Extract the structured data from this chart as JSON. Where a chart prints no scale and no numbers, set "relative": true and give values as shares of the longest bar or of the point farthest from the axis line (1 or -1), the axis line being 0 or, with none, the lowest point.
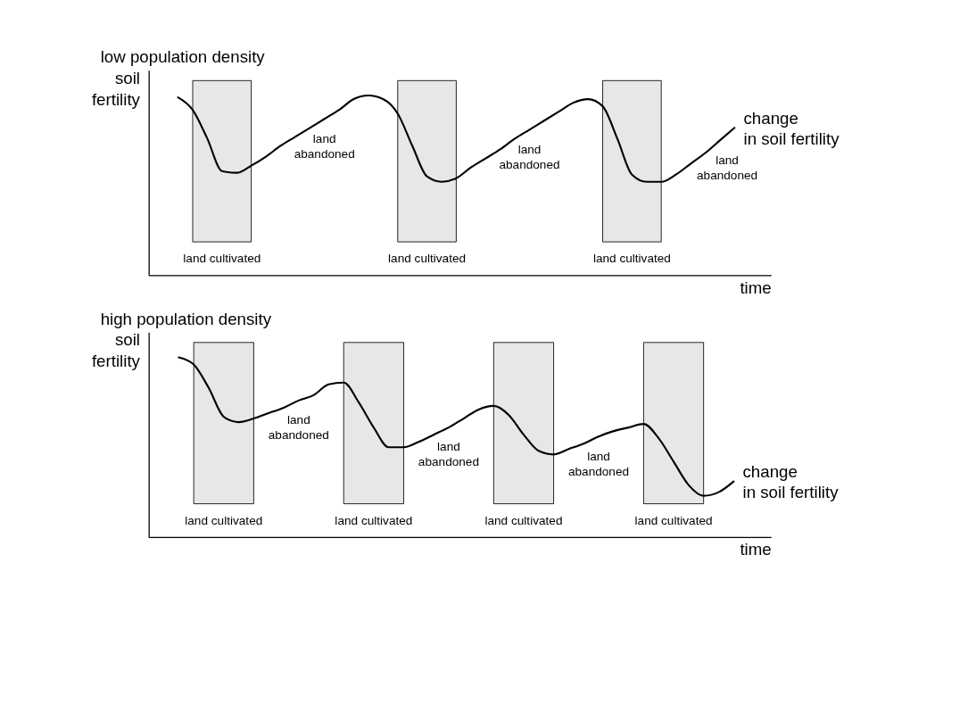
{
  "chart_data": [
    {
      "type": "line",
      "title": "low population density",
      "ylabel": "soil fertility",
      "xlabel": "time",
      "relative": true,
      "grid": false,
      "tick_labels": false,
      "categories": [
        null,
        null,
        null,
        null,
        null,
        null,
        null,
        null,
        null,
        null,
        null,
        null,
        null,
        null,
        null,
        null,
        null,
        null,
        null,
        null,
        null,
        null,
        null,
        null,
        null,
        null,
        null,
        null,
        null,
        null,
        null,
        null,
        null,
        null,
        null,
        null,
        null,
        null,
        null
      ],
      "series": [
        {
          "name": "change in soil fertility",
          "color": "#000000",
          "values": [
            0.99,
            0.92,
            0.76,
            0.58,
            0.57,
            0.61,
            0.66,
            0.72,
            0.77,
            0.82,
            0.87,
            0.92,
            0.98,
            1,
            0.98,
            0.9,
            0.72,
            0.55,
            0.52,
            0.54,
            0.6,
            0.65,
            0.7,
            0.76,
            0.81,
            0.86,
            0.91,
            0.96,
            0.98,
            0.94,
            0.76,
            0.56,
            0.52,
            0.52,
            0.56,
            0.62,
            0.68,
            0.75,
            0.82
          ]
        }
      ],
      "annotations": [
        "land cultivated",
        "land abandoned",
        "land cultivated",
        "land abandoned",
        "land cultivated",
        "land abandoned"
      ]
    },
    {
      "type": "line",
      "title": "high population density",
      "ylabel": "soil fertility",
      "xlabel": "time",
      "relative": true,
      "grid": false,
      "tick_labels": false,
      "categories": [
        null,
        null,
        null,
        null,
        null,
        null,
        null,
        null,
        null,
        null,
        null,
        null,
        null,
        null,
        null,
        null,
        null,
        null,
        null,
        null,
        null,
        null,
        null,
        null,
        null,
        null,
        null,
        null,
        null,
        null,
        null,
        null,
        null,
        null,
        null,
        null,
        null,
        null
      ],
      "series": [
        {
          "name": "change in soil fertility",
          "color": "#000000",
          "values": [
            1,
            0.96,
            0.83,
            0.67,
            0.64,
            0.66,
            0.69,
            0.72,
            0.76,
            0.79,
            0.85,
            0.86,
            0.75,
            0.61,
            0.5,
            0.5,
            0.53,
            0.57,
            0.61,
            0.66,
            0.71,
            0.73,
            0.68,
            0.57,
            0.48,
            0.46,
            0.49,
            0.52,
            0.56,
            0.59,
            0.61,
            0.63,
            0.55,
            0.42,
            0.29,
            0.23,
            0.25,
            0.31
          ]
        }
      ],
      "annotations": [
        "land cultivated",
        "land abandoned",
        "land cultivated",
        "land abandoned",
        "land cultivated",
        "land abandoned",
        "land cultivated"
      ]
    }
  ]
}
